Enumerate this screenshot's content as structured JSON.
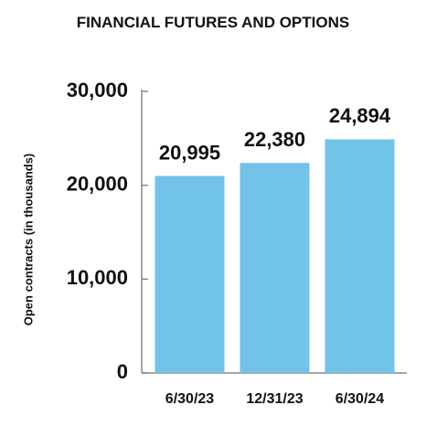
{
  "chart_data": {
    "type": "bar",
    "title": "FINANCIAL FUTURES AND OPTIONS",
    "y_label": "Open contracts (in thousands)",
    "categories": [
      "6/30/23",
      "12/31/23",
      "6/30/24"
    ],
    "values": [
      20995,
      22380,
      24894
    ],
    "value_labels": [
      "20,995",
      "22,380",
      "24,894"
    ],
    "color": "#72c3e8",
    "ylim": [
      0,
      30000
    ],
    "yticks": [
      0,
      {
        "value": 10000,
        "label": "10,000"
      },
      {
        "value": 20000,
        "label": "20,000"
      },
      {
        "value": 30000,
        "label": "30,000"
      }
    ],
    "grid": false
  }
}
